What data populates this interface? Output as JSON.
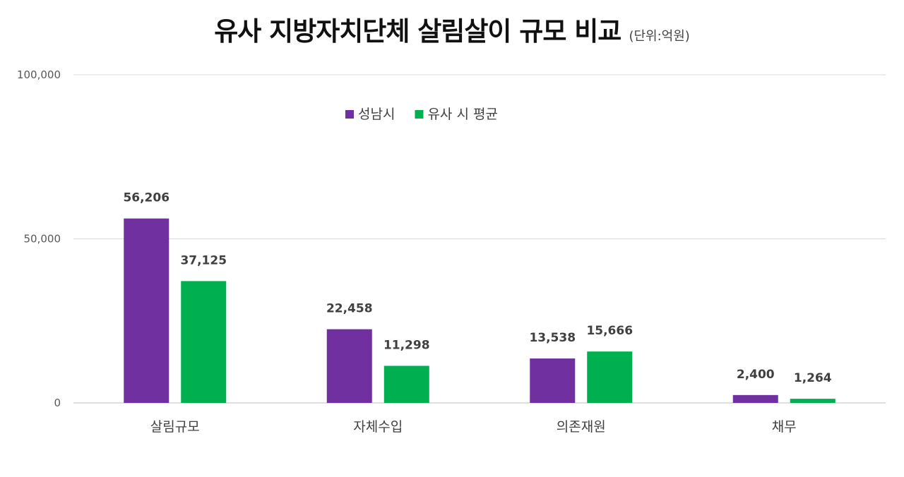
{
  "title": "유사 지방자치단체 살림살이 규모 비교",
  "unit": "(단위:억원)",
  "colors": {
    "seongnam": "#7030a0",
    "average": "#00b050",
    "grid": "#d9d9d9"
  },
  "chart_data": {
    "type": "bar",
    "title": "유사 지방자치단체 살림살이 규모 비교",
    "subtitle": "(단위:억원)",
    "categories": [
      "살림규모",
      "자체수입",
      "의존재원",
      "채무"
    ],
    "series": [
      {
        "name": "성남시",
        "values": [
          56206,
          22458,
          13538,
          2400
        ],
        "labels": [
          "56,206",
          "22,458",
          "13,538",
          "2,400"
        ]
      },
      {
        "name": "유사 시 평균",
        "values": [
          37125,
          11298,
          15666,
          1264
        ],
        "labels": [
          "37,125",
          "11,298",
          "15,666",
          "1,264"
        ]
      }
    ],
    "ylim": [
      0,
      100000
    ],
    "yticks": [
      0,
      50000,
      100000
    ],
    "ytick_labels": [
      "0",
      "50,000",
      "100,000"
    ],
    "grid": true,
    "legend": "top-left"
  }
}
